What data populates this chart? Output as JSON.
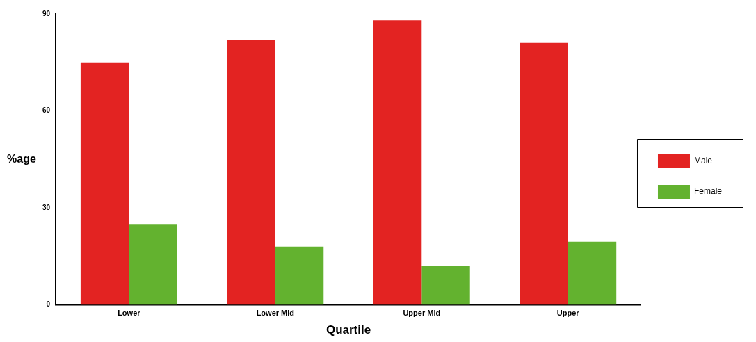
{
  "chart_data": {
    "type": "bar",
    "xlabel": "Quartile",
    "ylabel": "%age",
    "categories": [
      "Lower",
      "Lower Mid",
      "Upper Mid",
      "Upper"
    ],
    "series": [
      {
        "name": "Male",
        "color": "#e32322",
        "values": [
          75,
          82,
          88,
          81
        ]
      },
      {
        "name": "Female",
        "color": "#63b22f",
        "values": [
          25,
          18,
          12,
          19.5
        ]
      }
    ],
    "ylim": [
      0,
      90
    ],
    "yticks": [
      0,
      30,
      60,
      90
    ],
    "grid": false,
    "legend": "right"
  }
}
